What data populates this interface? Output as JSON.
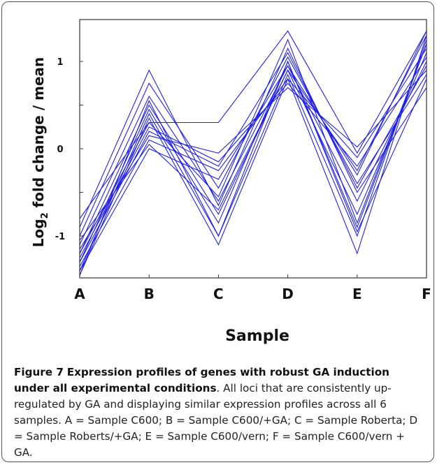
{
  "chart_data": {
    "type": "line",
    "xlabel": "Sample",
    "ylabel_main": "Log",
    "ylabel_sub": "2",
    "ylabel_rest": " fold change / mean",
    "categories": [
      "A",
      "B",
      "C",
      "D",
      "E",
      "F"
    ],
    "yticks": [
      1,
      0,
      -1
    ],
    "ylim": [
      -1.48,
      1.48
    ],
    "grid": false,
    "line_color": "#2020e6",
    "axis_color": "#333333",
    "series": [
      {
        "values": [
          -0.8,
          0.3,
          0.3,
          1.35,
          -0.05,
          1.35
        ]
      },
      {
        "values": [
          -0.9,
          0.9,
          -0.65,
          1.15,
          -0.5,
          0.7
        ]
      },
      {
        "values": [
          -1.0,
          0.75,
          -0.45,
          1.05,
          -0.4,
          0.85
        ]
      },
      {
        "values": [
          -1.1,
          0.6,
          -0.6,
          0.95,
          -0.6,
          1.0
        ]
      },
      {
        "values": [
          -1.2,
          0.5,
          -0.75,
          0.9,
          -0.75,
          1.1
        ]
      },
      {
        "values": [
          -1.3,
          0.45,
          -0.85,
          1.0,
          -0.9,
          1.2
        ]
      },
      {
        "values": [
          -1.4,
          0.4,
          -1.0,
          0.85,
          -1.0,
          1.25
        ]
      },
      {
        "values": [
          -1.45,
          0.35,
          -1.1,
          0.8,
          -1.2,
          1.3
        ]
      },
      {
        "values": [
          -1.25,
          0.25,
          -0.15,
          0.75,
          -0.2,
          1.05
        ]
      },
      {
        "values": [
          -1.15,
          0.15,
          -0.05,
          0.7,
          0.02,
          0.9
        ]
      },
      {
        "values": [
          -1.35,
          0.1,
          -0.25,
          0.8,
          -0.1,
          1.15
        ]
      },
      {
        "values": [
          -1.4,
          0.0,
          -0.35,
          0.95,
          -0.3,
          1.35
        ]
      },
      {
        "values": [
          -1.3,
          0.2,
          -0.2,
          1.1,
          -0.45,
          0.95
        ]
      },
      {
        "values": [
          -1.2,
          0.3,
          -0.55,
          1.25,
          -0.85,
          1.2
        ]
      },
      {
        "values": [
          -1.45,
          0.55,
          -1.0,
          1.0,
          -0.95,
          0.8
        ]
      },
      {
        "values": [
          -1.05,
          0.05,
          -0.7,
          0.9,
          -0.25,
          1.3
        ]
      }
    ]
  },
  "caption": {
    "label": "Figure 7",
    "title": "Expression profiles of genes with robust GA induction under all experimental conditions",
    "text": ". All loci that are consistently up-regulated by GA and displaying similar expression profiles across all 6 samples. A = Sample C600; B = Sample C600/+GA; C = Sample Roberta; D = Sample Roberts/+GA; E = Sample C600/vern; F = Sample C600/vern + GA."
  }
}
